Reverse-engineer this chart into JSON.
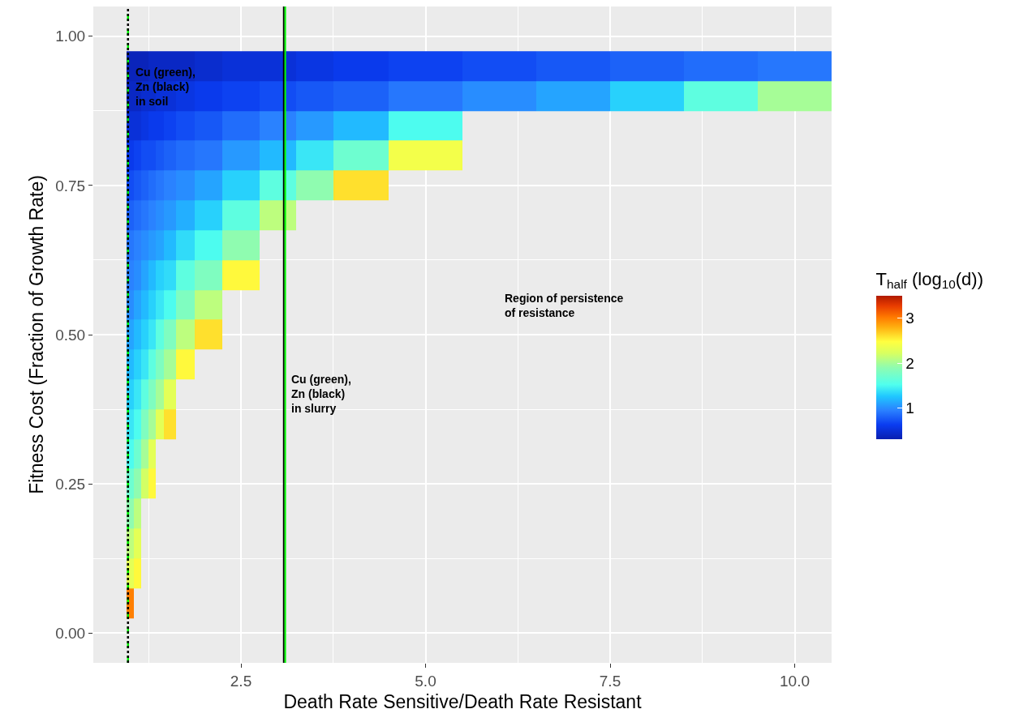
{
  "chart_data": {
    "type": "heatmap",
    "xlabel": "Death Rate Sensitive/Death Rate Resistant",
    "ylabel": "Fitness Cost (Fraction of Growth Rate)",
    "clabel": "T$_{half}$ (log$_{10}$(d))",
    "x": [
      1.0,
      1.1,
      1.2,
      1.3,
      1.4,
      1.5,
      1.75,
      2.0,
      2.5,
      3.0,
      3.5,
      4.0,
      5.0,
      6.0,
      7.0,
      8.0,
      9.0,
      10.0
    ],
    "y": [
      0.95,
      0.9,
      0.85,
      0.8,
      0.75,
      0.7,
      0.65,
      0.6,
      0.55,
      0.5,
      0.45,
      0.4,
      0.35,
      0.3,
      0.25,
      0.2,
      0.15,
      0.1,
      0.05
    ],
    "cells": [
      [
        0.35,
        0.35,
        0.35,
        0.4,
        0.4,
        0.4,
        0.4,
        0.45,
        0.5,
        0.5,
        0.55,
        0.6,
        0.65,
        0.7,
        0.75,
        0.8,
        0.85,
        0.9
      ],
      [
        0.4,
        0.4,
        0.45,
        0.45,
        0.5,
        0.5,
        0.55,
        0.6,
        0.65,
        0.7,
        0.75,
        0.8,
        0.9,
        1.0,
        1.1,
        1.3,
        1.6,
        2.0
      ],
      [
        0.5,
        0.5,
        0.55,
        0.6,
        0.6,
        0.65,
        0.7,
        0.75,
        0.85,
        0.95,
        1.05,
        1.2,
        1.5,
        null,
        null,
        null,
        null,
        null
      ],
      [
        0.6,
        0.65,
        0.7,
        0.7,
        0.75,
        0.8,
        0.85,
        0.9,
        1.05,
        1.2,
        1.4,
        1.7,
        2.4,
        null,
        null,
        null,
        null,
        null
      ],
      [
        0.7,
        0.75,
        0.8,
        0.85,
        0.9,
        0.95,
        1.0,
        1.1,
        1.3,
        1.6,
        1.9,
        2.6,
        null,
        null,
        null,
        null,
        null,
        null
      ],
      [
        0.8,
        0.85,
        0.9,
        0.95,
        1.0,
        1.05,
        1.15,
        1.3,
        1.6,
        2.1,
        null,
        null,
        null,
        null,
        null,
        null,
        null,
        null
      ],
      [
        0.9,
        0.95,
        1.0,
        1.05,
        1.1,
        1.2,
        1.35,
        1.5,
        1.9,
        null,
        null,
        null,
        null,
        null,
        null,
        null,
        null,
        null
      ],
      [
        0.95,
        1.0,
        1.1,
        1.2,
        1.3,
        1.35,
        1.6,
        1.8,
        2.5,
        null,
        null,
        null,
        null,
        null,
        null,
        null,
        null,
        null
      ],
      [
        1.0,
        1.1,
        1.2,
        1.3,
        1.4,
        1.5,
        1.8,
        2.1,
        null,
        null,
        null,
        null,
        null,
        null,
        null,
        null,
        null,
        null
      ],
      [
        1.1,
        1.2,
        1.3,
        1.4,
        1.6,
        1.8,
        2.1,
        2.6,
        null,
        null,
        null,
        null,
        null,
        null,
        null,
        null,
        null,
        null
      ],
      [
        1.2,
        1.3,
        1.4,
        1.6,
        1.8,
        2.0,
        2.5,
        null,
        null,
        null,
        null,
        null,
        null,
        null,
        null,
        null,
        null,
        null
      ],
      [
        1.3,
        1.4,
        1.6,
        1.8,
        2.0,
        2.3,
        null,
        null,
        null,
        null,
        null,
        null,
        null,
        null,
        null,
        null,
        null,
        null
      ],
      [
        1.4,
        1.5,
        1.8,
        2.0,
        2.3,
        2.6,
        null,
        null,
        null,
        null,
        null,
        null,
        null,
        null,
        null,
        null,
        null,
        null
      ],
      [
        1.5,
        1.7,
        2.0,
        2.3,
        null,
        null,
        null,
        null,
        null,
        null,
        null,
        null,
        null,
        null,
        null,
        null,
        null,
        null
      ],
      [
        1.7,
        1.9,
        2.2,
        2.5,
        null,
        null,
        null,
        null,
        null,
        null,
        null,
        null,
        null,
        null,
        null,
        null,
        null,
        null
      ],
      [
        1.9,
        2.1,
        null,
        null,
        null,
        null,
        null,
        null,
        null,
        null,
        null,
        null,
        null,
        null,
        null,
        null,
        null,
        null
      ],
      [
        2.1,
        2.3,
        null,
        null,
        null,
        null,
        null,
        null,
        null,
        null,
        null,
        null,
        null,
        null,
        null,
        null,
        null,
        null
      ],
      [
        2.3,
        2.5,
        null,
        null,
        null,
        null,
        null,
        null,
        null,
        null,
        null,
        null,
        null,
        null,
        null,
        null,
        null,
        null
      ],
      [
        3.0,
        null,
        null,
        null,
        null,
        null,
        null,
        null,
        null,
        null,
        null,
        null,
        null,
        null,
        null,
        null,
        null,
        null
      ]
    ],
    "clim": [
      0.3,
      3.5
    ],
    "cticks": [
      1,
      2,
      3
    ],
    "xlim": [
      0.5,
      10.5
    ],
    "xticks": [
      {
        "value": 2.5,
        "label": "2.5"
      },
      {
        "value": 5,
        "label": "5.0"
      },
      {
        "value": 7.5,
        "label": "7.5"
      },
      {
        "value": 10,
        "label": "10.0"
      }
    ],
    "ylim": [
      -0.05,
      1.05
    ],
    "yticks": [
      {
        "value": 0,
        "label": "0.00"
      },
      {
        "value": 0.25,
        "label": "0.25"
      },
      {
        "value": 0.5,
        "label": "0.50"
      },
      {
        "value": 0.75,
        "label": "0.75"
      },
      {
        "value": 1,
        "label": "1.00"
      }
    ],
    "grid": true,
    "ref_lines": [
      {
        "axis": "x",
        "value": 0.97,
        "color": "#00ff00",
        "line_style": "dashed"
      },
      {
        "axis": "x",
        "value": 0.97,
        "color": "#000000",
        "line_style": "dotted"
      },
      {
        "axis": "x",
        "value": 3.08,
        "color": "#000000",
        "line_style": "solid"
      },
      {
        "axis": "x",
        "value": 3.1,
        "color": "#00ff00",
        "line_style": "solid"
      }
    ],
    "annotations": [
      "Cu (green),\nZn (black)\nin soil",
      "Cu (green),\nZn (black)\nin slurry",
      "Region of persistence\nof resistance"
    ]
  }
}
